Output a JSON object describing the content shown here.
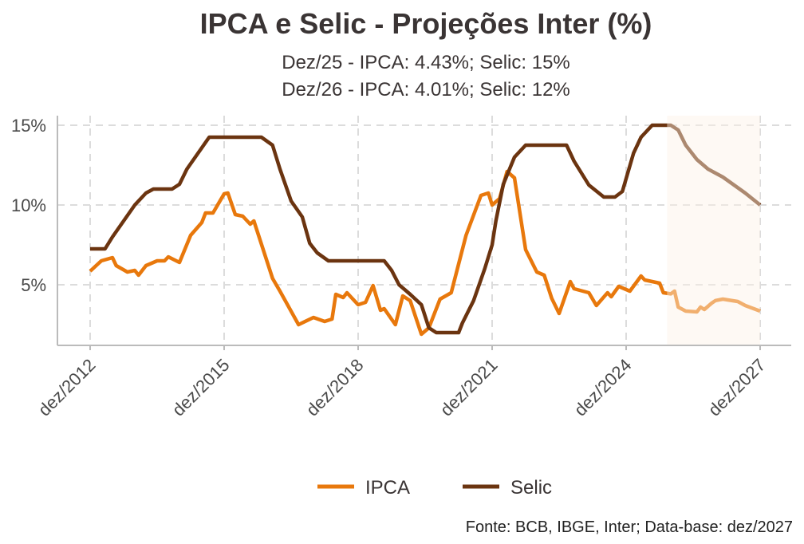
{
  "chart_data": {
    "type": "line",
    "title": "IPCA e Selic - Projeções Inter (%)",
    "subtitle": [
      "Dez/25 - IPCA: 4.43%; Selic: 15%",
      "Dez/26 - IPCA: 4.01%; Selic: 12%"
    ],
    "caption": "Fonte: BCB, IBGE, Inter; Data-base: dez/2027",
    "xlabel": "",
    "ylabel": "",
    "xlim": [
      "2012-12",
      "2027-12"
    ],
    "ylim": [
      1.2,
      15.6
    ],
    "x_ticks": [
      {
        "date": "2012-12",
        "label": "dez/2012"
      },
      {
        "date": "2015-12",
        "label": "dez/2015"
      },
      {
        "date": "2018-12",
        "label": "dez/2018"
      },
      {
        "date": "2021-12",
        "label": "dez/2021"
      },
      {
        "date": "2024-12",
        "label": "dez/2024"
      },
      {
        "date": "2027-12",
        "label": "dez/2027"
      }
    ],
    "y_ticks": [
      {
        "value": 5,
        "label": "5%"
      },
      {
        "value": 10,
        "label": "10%"
      },
      {
        "value": 15,
        "label": "15%"
      }
    ],
    "grid": true,
    "legend_position": "bottom",
    "projection_shading": {
      "from": "2025-11",
      "to": "2027-12",
      "color": "#fdf2e6"
    },
    "series": [
      {
        "name": "IPCA",
        "color": "#e8780c",
        "points": [
          [
            "2012-12",
            5.85
          ],
          [
            "2013-03",
            6.5
          ],
          [
            "2013-06",
            6.7
          ],
          [
            "2013-07",
            6.2
          ],
          [
            "2013-10",
            5.8
          ],
          [
            "2013-12",
            5.9
          ],
          [
            "2014-01",
            5.6
          ],
          [
            "2014-03",
            6.2
          ],
          [
            "2014-06",
            6.5
          ],
          [
            "2014-08",
            6.5
          ],
          [
            "2014-09",
            6.75
          ],
          [
            "2014-12",
            6.4
          ],
          [
            "2015-03",
            8.1
          ],
          [
            "2015-06",
            8.9
          ],
          [
            "2015-07",
            9.5
          ],
          [
            "2015-09",
            9.5
          ],
          [
            "2015-12",
            10.7
          ],
          [
            "2016-01",
            10.75
          ],
          [
            "2016-03",
            9.4
          ],
          [
            "2016-05",
            9.3
          ],
          [
            "2016-07",
            8.8
          ],
          [
            "2016-08",
            9.0
          ],
          [
            "2017-01",
            5.4
          ],
          [
            "2017-03",
            4.6
          ],
          [
            "2017-08",
            2.5
          ],
          [
            "2017-12",
            2.95
          ],
          [
            "2018-03",
            2.7
          ],
          [
            "2018-05",
            2.85
          ],
          [
            "2018-06",
            4.4
          ],
          [
            "2018-08",
            4.2
          ],
          [
            "2018-09",
            4.5
          ],
          [
            "2018-12",
            3.75
          ],
          [
            "2019-02",
            3.9
          ],
          [
            "2019-04",
            4.95
          ],
          [
            "2019-06",
            3.4
          ],
          [
            "2019-07",
            3.5
          ],
          [
            "2019-10",
            2.5
          ],
          [
            "2019-12",
            4.3
          ],
          [
            "2020-02",
            4.0
          ],
          [
            "2020-05",
            1.9
          ],
          [
            "2020-07",
            2.3
          ],
          [
            "2020-10",
            4.1
          ],
          [
            "2021-01",
            4.5
          ],
          [
            "2021-05",
            8.1
          ],
          [
            "2021-09",
            10.6
          ],
          [
            "2021-11",
            10.75
          ],
          [
            "2021-12",
            10.0
          ],
          [
            "2022-02",
            10.4
          ],
          [
            "2022-04",
            12.1
          ],
          [
            "2022-06",
            11.7
          ],
          [
            "2022-09",
            7.2
          ],
          [
            "2022-12",
            5.8
          ],
          [
            "2023-02",
            5.6
          ],
          [
            "2023-04",
            4.15
          ],
          [
            "2023-06",
            3.2
          ],
          [
            "2023-09",
            5.2
          ],
          [
            "2023-10",
            4.75
          ],
          [
            "2024-02",
            4.5
          ],
          [
            "2024-04",
            3.7
          ],
          [
            "2024-07",
            4.5
          ],
          [
            "2024-08",
            4.25
          ],
          [
            "2024-10",
            4.9
          ],
          [
            "2025-01",
            4.6
          ],
          [
            "2025-04",
            5.55
          ],
          [
            "2025-05",
            5.3
          ],
          [
            "2025-09",
            5.1
          ],
          [
            "2025-10",
            4.5
          ],
          [
            "2025-12",
            4.43
          ],
          [
            "2026-01",
            4.6
          ],
          [
            "2026-02",
            3.6
          ],
          [
            "2026-04",
            3.35
          ],
          [
            "2026-07",
            3.3
          ],
          [
            "2026-08",
            3.6
          ],
          [
            "2026-09",
            3.45
          ],
          [
            "2026-11",
            3.85
          ],
          [
            "2026-12",
            4.01
          ],
          [
            "2027-02",
            4.1
          ],
          [
            "2027-06",
            3.95
          ],
          [
            "2027-08",
            3.7
          ],
          [
            "2027-12",
            3.35
          ]
        ]
      },
      {
        "name": "Selic",
        "color": "#6b3410",
        "points": [
          [
            "2012-12",
            7.25
          ],
          [
            "2013-04",
            7.25
          ],
          [
            "2013-06",
            8.0
          ],
          [
            "2013-09",
            9.0
          ],
          [
            "2013-12",
            10.0
          ],
          [
            "2014-03",
            10.75
          ],
          [
            "2014-05",
            11.0
          ],
          [
            "2014-10",
            11.0
          ],
          [
            "2014-12",
            11.3
          ],
          [
            "2015-02",
            12.25
          ],
          [
            "2015-05",
            13.25
          ],
          [
            "2015-08",
            14.25
          ],
          [
            "2016-10",
            14.25
          ],
          [
            "2017-01",
            13.75
          ],
          [
            "2017-03",
            12.25
          ],
          [
            "2017-06",
            10.25
          ],
          [
            "2017-09",
            9.25
          ],
          [
            "2017-11",
            7.6
          ],
          [
            "2018-01",
            7.0
          ],
          [
            "2018-04",
            6.5
          ],
          [
            "2019-07",
            6.5
          ],
          [
            "2019-09",
            5.9
          ],
          [
            "2019-11",
            5.0
          ],
          [
            "2020-02",
            4.4
          ],
          [
            "2020-05",
            3.75
          ],
          [
            "2020-07",
            2.3
          ],
          [
            "2020-09",
            2.0
          ],
          [
            "2021-03",
            2.0
          ],
          [
            "2021-04",
            2.6
          ],
          [
            "2021-07",
            4.0
          ],
          [
            "2021-10",
            6.0
          ],
          [
            "2021-12",
            7.5
          ],
          [
            "2022-01",
            9.0
          ],
          [
            "2022-03",
            11.3
          ],
          [
            "2022-06",
            13.0
          ],
          [
            "2022-09",
            13.75
          ],
          [
            "2023-08",
            13.75
          ],
          [
            "2023-10",
            12.75
          ],
          [
            "2024-02",
            11.25
          ],
          [
            "2024-06",
            10.5
          ],
          [
            "2024-09",
            10.5
          ],
          [
            "2024-11",
            10.85
          ],
          [
            "2025-02",
            13.25
          ],
          [
            "2025-04",
            14.25
          ],
          [
            "2025-07",
            15.0
          ],
          [
            "2025-12",
            15.0
          ],
          [
            "2026-02",
            14.7
          ],
          [
            "2026-04",
            13.75
          ],
          [
            "2026-07",
            12.85
          ],
          [
            "2026-10",
            12.25
          ],
          [
            "2026-12",
            12.0
          ],
          [
            "2027-02",
            11.75
          ],
          [
            "2027-05",
            11.25
          ],
          [
            "2027-08",
            10.75
          ],
          [
            "2027-12",
            10.0
          ]
        ]
      }
    ]
  }
}
